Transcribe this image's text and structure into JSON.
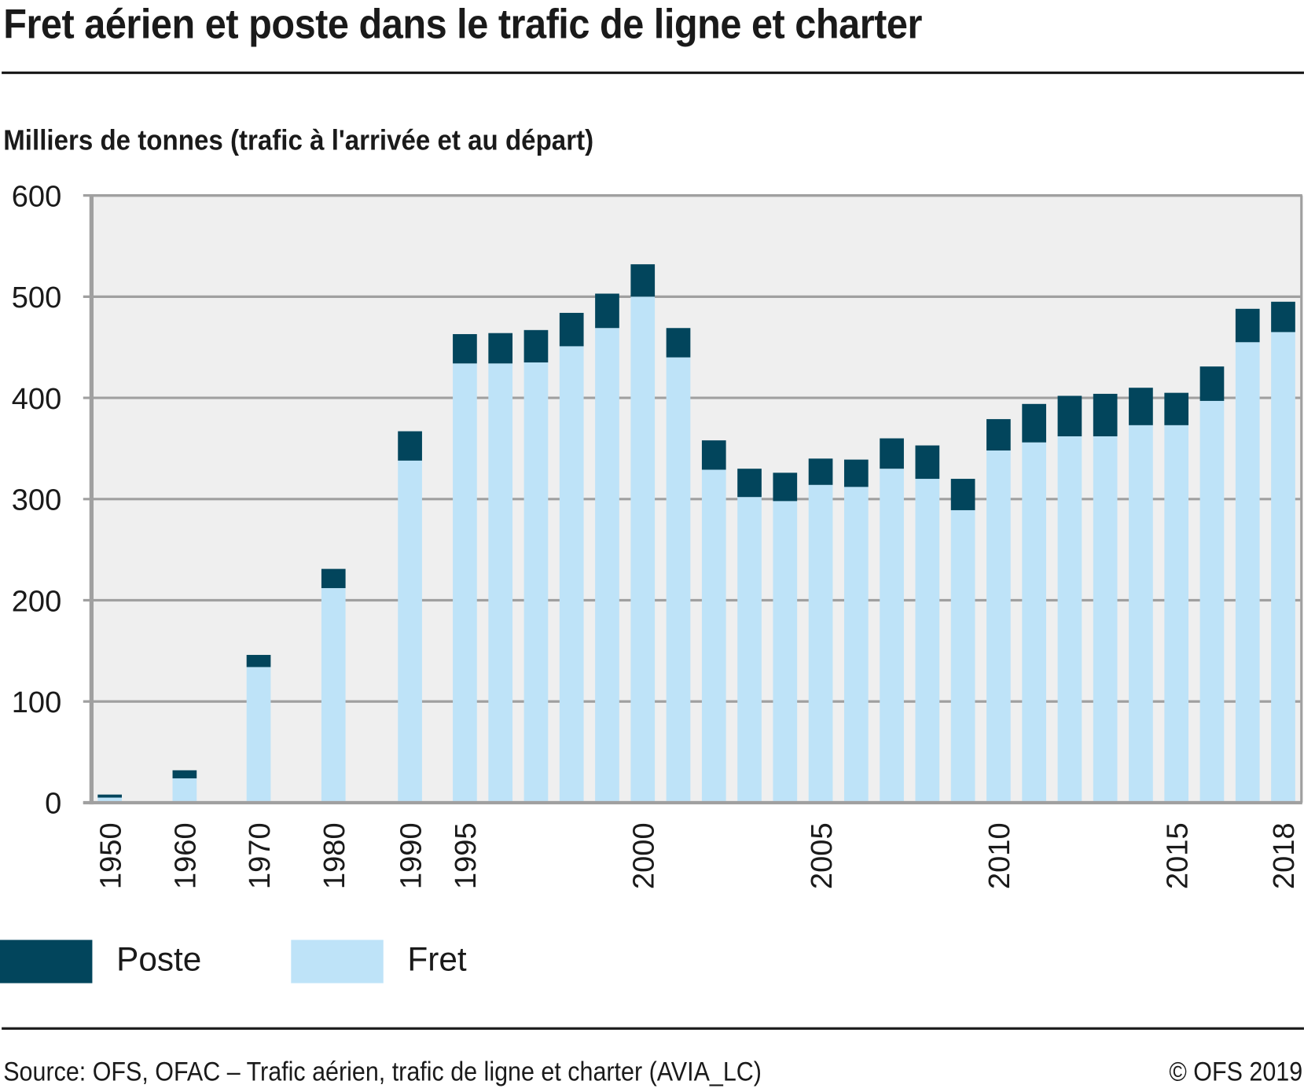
{
  "header": {
    "title": "Fret aérien et poste dans le trafic de ligne et charter",
    "subtitle": "Milliers de tonnes (trafic à l'arrivée et au départ)"
  },
  "legend": {
    "items": [
      {
        "label": "Poste",
        "color": "#02455c"
      },
      {
        "label": "Fret",
        "color": "#bee3f8"
      }
    ]
  },
  "footer": {
    "source": "Source: OFS, OFAC – Trafic aérien, trafic de ligne et charter (AVIA_LC)",
    "copyright": "© OFS 2019"
  },
  "chart_data": {
    "type": "bar",
    "stacked": true,
    "title": "Fret aérien et poste dans le trafic de ligne et charter",
    "ylabel": "Milliers de tonnes (trafic à l'arrivée et au départ)",
    "xlabel": "",
    "ylim": [
      0,
      600
    ],
    "yticks": [
      0,
      100,
      200,
      300,
      400,
      500,
      600
    ],
    "grid": true,
    "legend_position": "bottom-left",
    "plot_background": "#efefef",
    "categories": [
      1950,
      1960,
      1970,
      1980,
      1990,
      1995,
      1996,
      1997,
      1998,
      1999,
      2000,
      2001,
      2002,
      2003,
      2004,
      2005,
      2006,
      2007,
      2008,
      2009,
      2010,
      2011,
      2012,
      2013,
      2014,
      2015,
      2016,
      2017,
      2018
    ],
    "xtick_labels": [
      "1950",
      "1960",
      "1970",
      "1980",
      "1990",
      "1995",
      "",
      "",
      "",
      "",
      "2000",
      "",
      "",
      "",
      "",
      "2005",
      "",
      "",
      "",
      "",
      "2010",
      "",
      "",
      "",
      "",
      "2015",
      "",
      "",
      "2018"
    ],
    "series": [
      {
        "name": "Fret",
        "color": "#bee3f8",
        "values": [
          5,
          24,
          134,
          212,
          338,
          434,
          434,
          435,
          451,
          469,
          500,
          440,
          329,
          302,
          298,
          314,
          312,
          330,
          320,
          289,
          348,
          356,
          362,
          362,
          373,
          373,
          397,
          455,
          465
        ]
      },
      {
        "name": "Poste",
        "color": "#02455c",
        "values": [
          3,
          8,
          12,
          19,
          29,
          29,
          30,
          32,
          33,
          34,
          32,
          29,
          29,
          28,
          28,
          26,
          27,
          30,
          33,
          31,
          31,
          38,
          40,
          42,
          37,
          32,
          34,
          33,
          30
        ]
      }
    ]
  }
}
